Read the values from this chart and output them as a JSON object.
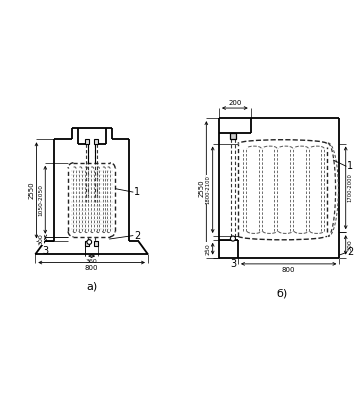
{
  "bg_color": "#ffffff",
  "lc": "#000000",
  "dc": "#444444",
  "fig_width": 3.62,
  "fig_height": 3.96,
  "dpi": 100,
  "label_a": "а)",
  "label_b": "б)"
}
